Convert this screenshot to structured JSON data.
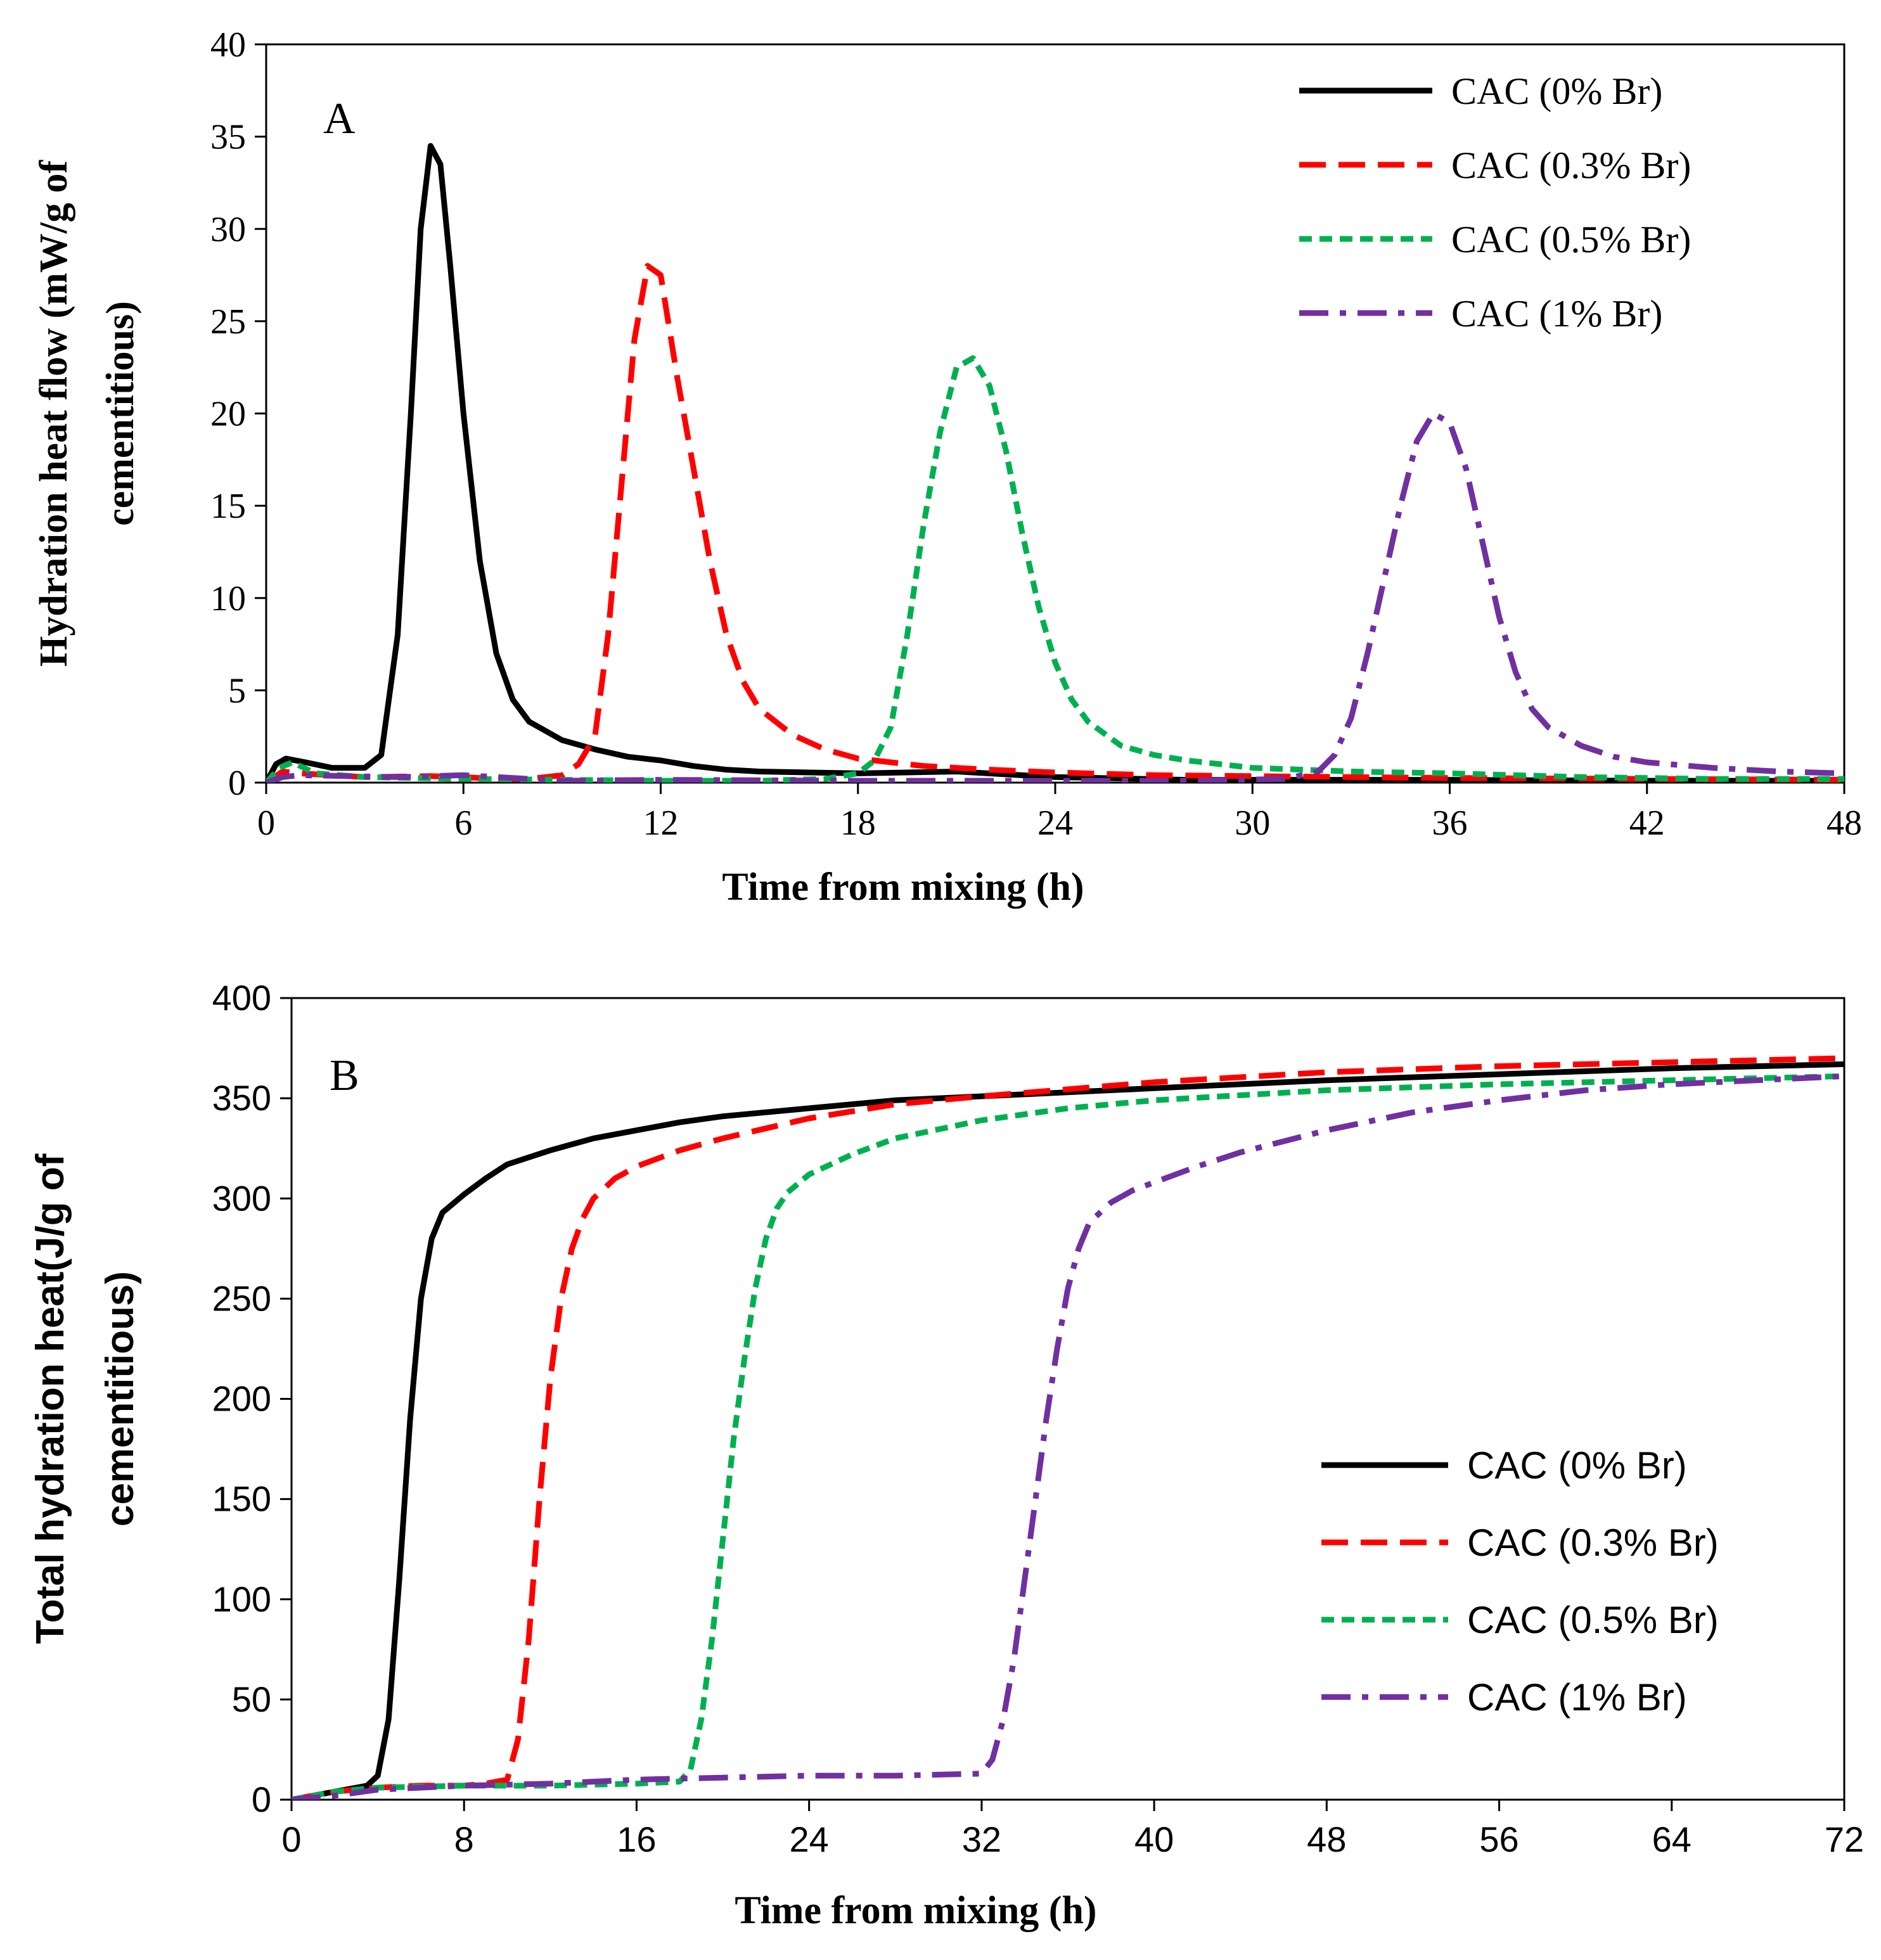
{
  "chart_data": [
    {
      "type": "line",
      "panel": "A",
      "xlabel": "Time from mixing (h)",
      "ylabel_lines": [
        "Hydration heat flow (mW/g of",
        "cementitious)"
      ],
      "xlim": [
        0,
        48
      ],
      "ylim": [
        0,
        40
      ],
      "x_ticks": [
        0,
        6,
        12,
        18,
        24,
        30,
        36,
        42,
        48
      ],
      "y_ticks": [
        0,
        5,
        10,
        15,
        20,
        25,
        30,
        35,
        40
      ],
      "legend_position": "top-right",
      "grid": false,
      "series": [
        {
          "name": "CAC (0% Br)",
          "color": "#000000",
          "style": "solid",
          "points": [
            [
              0,
              0
            ],
            [
              0.3,
              1.0
            ],
            [
              0.6,
              1.3
            ],
            [
              1.2,
              1.1
            ],
            [
              2,
              0.8
            ],
            [
              3,
              0.8
            ],
            [
              3.5,
              1.5
            ],
            [
              4,
              8
            ],
            [
              4.4,
              20
            ],
            [
              4.7,
              30
            ],
            [
              5,
              34.5
            ],
            [
              5.3,
              33.5
            ],
            [
              5.6,
              28
            ],
            [
              6,
              20
            ],
            [
              6.5,
              12
            ],
            [
              7,
              7
            ],
            [
              7.5,
              4.5
            ],
            [
              8,
              3.3
            ],
            [
              9,
              2.3
            ],
            [
              10,
              1.8
            ],
            [
              11,
              1.4
            ],
            [
              12,
              1.2
            ],
            [
              13,
              0.9
            ],
            [
              14,
              0.7
            ],
            [
              15,
              0.6
            ],
            [
              18,
              0.5
            ],
            [
              21,
              0.6
            ],
            [
              24,
              0.3
            ],
            [
              28,
              0.15
            ],
            [
              32,
              0.15
            ],
            [
              36,
              0.15
            ],
            [
              42,
              0.1
            ],
            [
              48,
              0.1
            ]
          ]
        },
        {
          "name": "CAC (0.3% Br)",
          "color": "#ff0000",
          "style": "dashed",
          "points": [
            [
              0,
              0
            ],
            [
              0.5,
              0.6
            ],
            [
              1,
              0.5
            ],
            [
              3,
              0.3
            ],
            [
              5,
              0.35
            ],
            [
              6,
              0.3
            ],
            [
              7,
              0.2
            ],
            [
              8,
              0.2
            ],
            [
              9,
              0.4
            ],
            [
              9.5,
              1.0
            ],
            [
              10,
              2.5
            ],
            [
              10.4,
              8
            ],
            [
              10.8,
              16
            ],
            [
              11.2,
              24
            ],
            [
              11.6,
              28
            ],
            [
              12,
              27.5
            ],
            [
              12.5,
              22
            ],
            [
              13,
              17
            ],
            [
              13.5,
              12
            ],
            [
              14,
              8
            ],
            [
              14.5,
              5.5
            ],
            [
              15,
              4
            ],
            [
              16,
              2.6
            ],
            [
              17,
              1.8
            ],
            [
              18,
              1.3
            ],
            [
              20,
              0.9
            ],
            [
              22,
              0.7
            ],
            [
              24,
              0.55
            ],
            [
              27,
              0.4
            ],
            [
              30,
              0.35
            ],
            [
              36,
              0.25
            ],
            [
              42,
              0.2
            ],
            [
              48,
              0.15
            ]
          ]
        },
        {
          "name": "CAC (0.5% Br)",
          "color": "#00b050",
          "style": "dotted",
          "points": [
            [
              0,
              0
            ],
            [
              0.4,
              0.8
            ],
            [
              0.8,
              1.1
            ],
            [
              1.5,
              0.5
            ],
            [
              3,
              0.3
            ],
            [
              6,
              0.2
            ],
            [
              9,
              0.15
            ],
            [
              12,
              0.1
            ],
            [
              15,
              0.1
            ],
            [
              17,
              0.2
            ],
            [
              18,
              0.5
            ],
            [
              18.5,
              1.2
            ],
            [
              19,
              3
            ],
            [
              19.5,
              8
            ],
            [
              20,
              14
            ],
            [
              20.5,
              19
            ],
            [
              21,
              22.5
            ],
            [
              21.5,
              23
            ],
            [
              22,
              21.5
            ],
            [
              22.5,
              18
            ],
            [
              23,
              13.5
            ],
            [
              23.5,
              9.5
            ],
            [
              24,
              6.5
            ],
            [
              24.5,
              4.5
            ],
            [
              25,
              3.3
            ],
            [
              26,
              2
            ],
            [
              27,
              1.5
            ],
            [
              28,
              1.2
            ],
            [
              30,
              0.8
            ],
            [
              33,
              0.6
            ],
            [
              36,
              0.5
            ],
            [
              40,
              0.3
            ],
            [
              44,
              0.2
            ],
            [
              48,
              0.2
            ]
          ]
        },
        {
          "name": "CAC (1% Br)",
          "color": "#7030a0",
          "style": "dashdot",
          "points": [
            [
              0,
              0
            ],
            [
              0.5,
              0.3
            ],
            [
              1,
              0.4
            ],
            [
              4,
              0.3
            ],
            [
              6,
              0.4
            ],
            [
              9,
              0.1
            ],
            [
              12,
              0.15
            ],
            [
              18,
              0.1
            ],
            [
              24,
              0.1
            ],
            [
              28,
              0.1
            ],
            [
              31,
              0.2
            ],
            [
              32,
              0.6
            ],
            [
              32.5,
              1.5
            ],
            [
              33,
              3.5
            ],
            [
              33.5,
              7
            ],
            [
              34,
              11
            ],
            [
              34.5,
              15
            ],
            [
              35,
              18.5
            ],
            [
              35.5,
              20
            ],
            [
              36,
              19.5
            ],
            [
              36.5,
              17
            ],
            [
              37,
              13
            ],
            [
              37.5,
              9
            ],
            [
              38,
              6
            ],
            [
              38.5,
              4
            ],
            [
              39,
              3
            ],
            [
              40,
              2
            ],
            [
              41,
              1.4
            ],
            [
              42,
              1.1
            ],
            [
              44,
              0.8
            ],
            [
              46,
              0.6
            ],
            [
              48,
              0.5
            ]
          ]
        }
      ]
    },
    {
      "type": "line",
      "panel": "B",
      "xlabel": "Time from mixing (h)",
      "ylabel_lines": [
        "Total hydration heat(J/g of",
        "cementitious)"
      ],
      "xlim": [
        0,
        72
      ],
      "ylim": [
        0,
        400
      ],
      "x_ticks": [
        0,
        8,
        16,
        24,
        32,
        40,
        48,
        56,
        64,
        72
      ],
      "y_ticks": [
        0,
        50,
        100,
        150,
        200,
        250,
        300,
        350,
        400
      ],
      "legend_position": "bottom-right",
      "grid": false,
      "series": [
        {
          "name": "CAC (0% Br)",
          "color": "#000000",
          "style": "solid",
          "points": [
            [
              0,
              0
            ],
            [
              1,
              2
            ],
            [
              2,
              4
            ],
            [
              3,
              6
            ],
            [
              3.5,
              7
            ],
            [
              4,
              12
            ],
            [
              4.5,
              40
            ],
            [
              5,
              110
            ],
            [
              5.5,
              190
            ],
            [
              6,
              250
            ],
            [
              6.5,
              280
            ],
            [
              7,
              293
            ],
            [
              8,
              302
            ],
            [
              9,
              310
            ],
            [
              10,
              317
            ],
            [
              12,
              324
            ],
            [
              14,
              330
            ],
            [
              16,
              334
            ],
            [
              18,
              338
            ],
            [
              20,
              341
            ],
            [
              24,
              345
            ],
            [
              28,
              349
            ],
            [
              32,
              351
            ],
            [
              40,
              355
            ],
            [
              48,
              359
            ],
            [
              56,
              362
            ],
            [
              64,
              365
            ],
            [
              72,
              367
            ]
          ]
        },
        {
          "name": "CAC (0.3% Br)",
          "color": "#ff0000",
          "style": "dashed",
          "points": [
            [
              0,
              0
            ],
            [
              2,
              4
            ],
            [
              4,
              6
            ],
            [
              6,
              7
            ],
            [
              8,
              7
            ],
            [
              9,
              8
            ],
            [
              10,
              10
            ],
            [
              10.5,
              30
            ],
            [
              11,
              80
            ],
            [
              11.5,
              150
            ],
            [
              12,
              210
            ],
            [
              12.5,
              250
            ],
            [
              13,
              275
            ],
            [
              13.5,
              290
            ],
            [
              14,
              300
            ],
            [
              15,
              310
            ],
            [
              16,
              316
            ],
            [
              18,
              324
            ],
            [
              20,
              330
            ],
            [
              24,
              340
            ],
            [
              28,
              347
            ],
            [
              32,
              351
            ],
            [
              40,
              358
            ],
            [
              48,
              363
            ],
            [
              56,
              366
            ],
            [
              64,
              368
            ],
            [
              72,
              370
            ]
          ]
        },
        {
          "name": "CAC (0.5% Br)",
          "color": "#00b050",
          "style": "dotted",
          "points": [
            [
              0,
              0
            ],
            [
              2,
              4
            ],
            [
              4,
              6
            ],
            [
              8,
              7
            ],
            [
              12,
              7
            ],
            [
              16,
              8
            ],
            [
              18,
              9
            ],
            [
              18.5,
              15
            ],
            [
              19,
              40
            ],
            [
              19.5,
              80
            ],
            [
              20,
              130
            ],
            [
              20.5,
              180
            ],
            [
              21,
              220
            ],
            [
              21.5,
              255
            ],
            [
              22,
              280
            ],
            [
              22.5,
              295
            ],
            [
              23,
              303
            ],
            [
              24,
              312
            ],
            [
              26,
              322
            ],
            [
              28,
              330
            ],
            [
              32,
              339
            ],
            [
              36,
              345
            ],
            [
              40,
              349
            ],
            [
              48,
              354
            ],
            [
              56,
              357
            ],
            [
              64,
              359
            ],
            [
              72,
              361
            ]
          ]
        },
        {
          "name": "CAC (1% Br)",
          "color": "#7030a0",
          "style": "dashdot",
          "points": [
            [
              0,
              0
            ],
            [
              2,
              2
            ],
            [
              4,
              5
            ],
            [
              8,
              7
            ],
            [
              12,
              8
            ],
            [
              16,
              10
            ],
            [
              20,
              11
            ],
            [
              24,
              12
            ],
            [
              28,
              12
            ],
            [
              32,
              13
            ],
            [
              32.5,
              20
            ],
            [
              33,
              40
            ],
            [
              33.5,
              70
            ],
            [
              34,
              110
            ],
            [
              34.5,
              150
            ],
            [
              35,
              190
            ],
            [
              35.5,
              225
            ],
            [
              36,
              255
            ],
            [
              36.5,
              275
            ],
            [
              37,
              288
            ],
            [
              38,
              298
            ],
            [
              39,
              304
            ],
            [
              40,
              308
            ],
            [
              42,
              316
            ],
            [
              44,
              323
            ],
            [
              48,
              334
            ],
            [
              52,
              343
            ],
            [
              56,
              349
            ],
            [
              60,
              354
            ],
            [
              64,
              357
            ],
            [
              72,
              361
            ]
          ]
        }
      ]
    }
  ]
}
